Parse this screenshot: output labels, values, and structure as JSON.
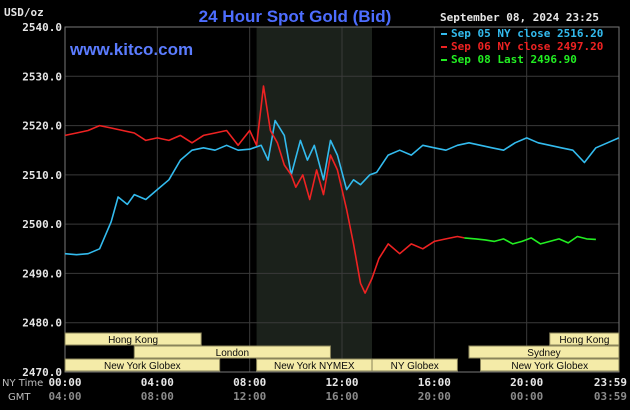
{
  "header": {
    "title": "24 Hour Spot Gold (Bid)",
    "unit_label": "USD/oz",
    "date_time": "September 08, 2024 23:25",
    "source": "www.kitco.com"
  },
  "legend": [
    {
      "text": "Sep 05 NY close 2516.20",
      "color": "#33bbee"
    },
    {
      "text": "Sep 06 NY close 2497.20",
      "color": "#ee2222"
    },
    {
      "text": "Sep 08 Last 2496.90",
      "color": "#22ee22"
    }
  ],
  "axis_labels": {
    "row1_name": "NY Time",
    "row2_name": "GMT",
    "ny_ticks": [
      "00:00",
      "04:00",
      "08:00",
      "12:00",
      "16:00",
      "20:00",
      "23:59"
    ],
    "gmt_ticks": [
      "04:00",
      "08:00",
      "12:00",
      "16:00",
      "20:00",
      "00:00",
      "03:59"
    ]
  },
  "sessions": [
    {
      "label": "Hong Kong",
      "start": 0.0,
      "end": 5.9,
      "row": 0
    },
    {
      "label": "Hong Kong",
      "start": 21.0,
      "end": 24.0,
      "row": 0
    },
    {
      "label": "London",
      "start": 3.0,
      "end": 11.5,
      "row": 1
    },
    {
      "label": "Sydney",
      "start": 17.5,
      "end": 24.0,
      "row": 1
    },
    {
      "label": "New York Globex",
      "start": 0.0,
      "end": 6.7,
      "row": 2
    },
    {
      "label": "New York NYMEX",
      "start": 8.3,
      "end": 13.3,
      "row": 2
    },
    {
      "label": "NY Globex",
      "start": 13.3,
      "end": 17.0,
      "row": 2
    },
    {
      "label": "New York Globex",
      "start": 18.0,
      "end": 24.0,
      "row": 2
    }
  ],
  "chart_data": {
    "type": "line",
    "title": "24 Hour Spot Gold (Bid)",
    "ylabel": "USD/oz",
    "xlabel": "NY Time",
    "ylim": [
      2470,
      2540
    ],
    "xlim": [
      0,
      24
    ],
    "y_ticks": [
      "2540.0",
      "2530.0",
      "2520.0",
      "2510.0",
      "2500.0",
      "2490.0",
      "2480.0",
      "2470.0"
    ],
    "grid": true,
    "legend_position": "top-right",
    "shaded_hours": [
      8.3,
      13.3
    ],
    "series": [
      {
        "name": "Sep 05 NY close 2516.20",
        "color": "#33bbee",
        "x": [
          0,
          0.5,
          1.0,
          1.5,
          2.0,
          2.3,
          2.7,
          3.0,
          3.5,
          4.0,
          4.5,
          5.0,
          5.5,
          6.0,
          6.5,
          7.0,
          7.5,
          8.0,
          8.5,
          8.8,
          9.1,
          9.5,
          9.8,
          10.2,
          10.5,
          10.8,
          11.2,
          11.5,
          11.8,
          12.2,
          12.5,
          12.8,
          13.2,
          13.5,
          14.0,
          14.5,
          15.0,
          15.5,
          16.0,
          16.5,
          17.0,
          17.5,
          18.0,
          18.5,
          19.0,
          19.5,
          20.0,
          20.5,
          21.0,
          21.5,
          22.0,
          22.5,
          23.0,
          23.5,
          23.99
        ],
        "y": [
          2494.0,
          2493.8,
          2494.0,
          2495.0,
          2500.5,
          2505.5,
          2504.0,
          2506.0,
          2505.0,
          2507.0,
          2509.0,
          2513.0,
          2515.0,
          2515.5,
          2515.0,
          2516.0,
          2515.0,
          2515.2,
          2516.0,
          2513.0,
          2521.0,
          2518.0,
          2510.0,
          2517.0,
          2513.0,
          2516.0,
          2509.0,
          2517.0,
          2514.0,
          2507.0,
          2509.0,
          2508.0,
          2510.0,
          2510.5,
          2514.0,
          2515.0,
          2514.0,
          2516.0,
          2515.5,
          2515.0,
          2516.0,
          2516.5,
          2516.0,
          2515.5,
          2515.0,
          2516.5,
          2517.5,
          2516.5,
          2516.0,
          2515.5,
          2515.0,
          2512.5,
          2515.5,
          2516.5,
          2517.5
        ]
      },
      {
        "name": "Sep 06 NY close 2497.20",
        "color": "#ee2222",
        "x": [
          0,
          0.5,
          1.0,
          1.5,
          2.0,
          2.5,
          3.0,
          3.5,
          4.0,
          4.5,
          5.0,
          5.5,
          6.0,
          6.5,
          7.0,
          7.5,
          8.0,
          8.3,
          8.6,
          8.9,
          9.2,
          9.5,
          9.8,
          10.0,
          10.3,
          10.6,
          10.9,
          11.2,
          11.5,
          11.8,
          12.0,
          12.2,
          12.5,
          12.8,
          13.0,
          13.3,
          13.6,
          14.0,
          14.5,
          15.0,
          15.5,
          16.0,
          16.5,
          17.0,
          17.3
        ],
        "y": [
          2518.0,
          2518.5,
          2519.0,
          2520.0,
          2519.5,
          2519.0,
          2518.5,
          2517.0,
          2517.5,
          2517.0,
          2518.0,
          2516.5,
          2518.0,
          2518.5,
          2519.0,
          2516.0,
          2519.0,
          2516.0,
          2528.0,
          2519.0,
          2516.5,
          2512.0,
          2510.0,
          2507.5,
          2510.0,
          2505.0,
          2511.0,
          2506.0,
          2514.0,
          2511.0,
          2507.0,
          2503.0,
          2496.0,
          2488.0,
          2486.0,
          2489.0,
          2493.0,
          2496.0,
          2494.0,
          2496.0,
          2495.0,
          2496.5,
          2497.0,
          2497.5,
          2497.2
        ]
      },
      {
        "name": "Sep 08 Last 2496.90",
        "color": "#22ee22",
        "x": [
          17.3,
          17.8,
          18.2,
          18.6,
          19.0,
          19.4,
          19.8,
          20.2,
          20.6,
          21.0,
          21.4,
          21.8,
          22.2,
          22.6,
          23.0
        ],
        "y": [
          2497.2,
          2497.0,
          2496.8,
          2496.5,
          2497.0,
          2496.0,
          2496.5,
          2497.2,
          2496.0,
          2496.5,
          2497.0,
          2496.2,
          2497.5,
          2497.0,
          2496.9
        ]
      }
    ]
  }
}
